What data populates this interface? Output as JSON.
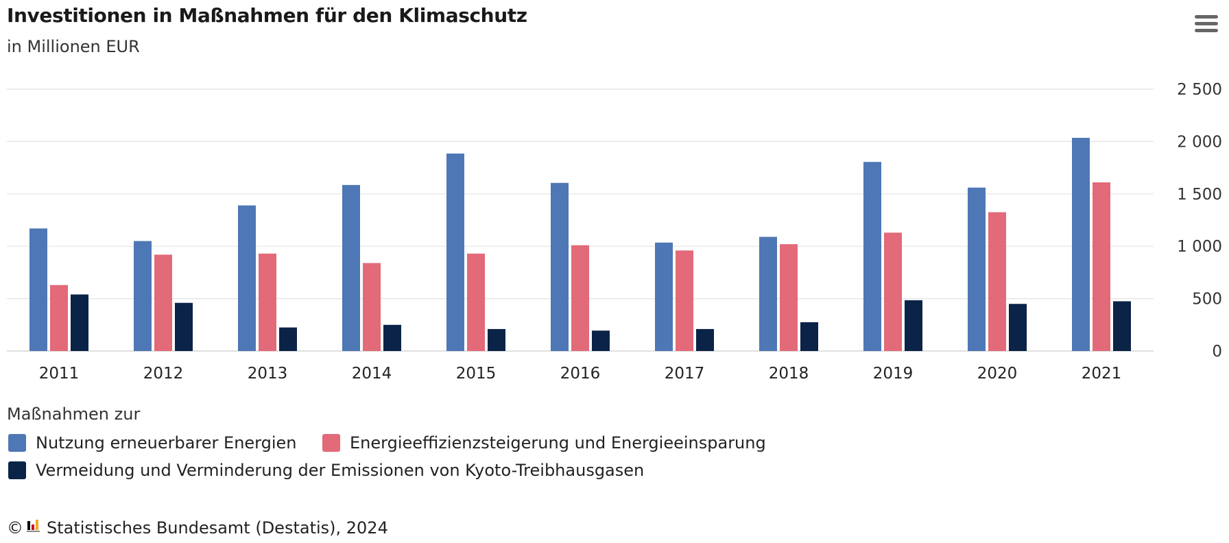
{
  "header": {
    "title": "Investitionen in Maßnahmen für den Klimaschutz",
    "subtitle": "in Millionen EUR"
  },
  "menu": {
    "icon": "hamburger-menu-icon"
  },
  "legend": {
    "title": "Maßnahmen zur"
  },
  "footer": {
    "copyright_symbol": "©",
    "logo_icon": "destatis-logo-icon",
    "text": "Statistisches Bundesamt (Destatis), 2024"
  },
  "chart_data": {
    "type": "bar",
    "categories": [
      "2011",
      "2012",
      "2013",
      "2014",
      "2015",
      "2016",
      "2017",
      "2018",
      "2019",
      "2020",
      "2021"
    ],
    "series": [
      {
        "name": "Nutzung erneuerbarer Energien",
        "color": "#4e77b5",
        "values": [
          1170,
          1050,
          1390,
          1585,
          1885,
          1605,
          1035,
          1090,
          1805,
          1560,
          2035
        ]
      },
      {
        "name": "Energieeffizienzsteigerung und Energieeinsparung",
        "color": "#e26a79",
        "values": [
          630,
          920,
          930,
          840,
          930,
          1010,
          960,
          1020,
          1130,
          1325,
          1610
        ]
      },
      {
        "name": "Vermeidung und Verminderung der Emissionen von Kyoto-Treibhausgasen",
        "color": "#0b2347",
        "values": [
          540,
          460,
          225,
          250,
          210,
          195,
          210,
          275,
          485,
          450,
          475
        ]
      }
    ],
    "ylim": [
      0,
      2500
    ],
    "yticks": [
      0,
      500,
      1000,
      1500,
      2000,
      2500
    ],
    "ytick_labels": [
      "0",
      "500",
      "1 000",
      "1 500",
      "2 000",
      "2 500"
    ],
    "grid": true,
    "y_axis_side": "right",
    "legend_position": "bottom-left"
  }
}
